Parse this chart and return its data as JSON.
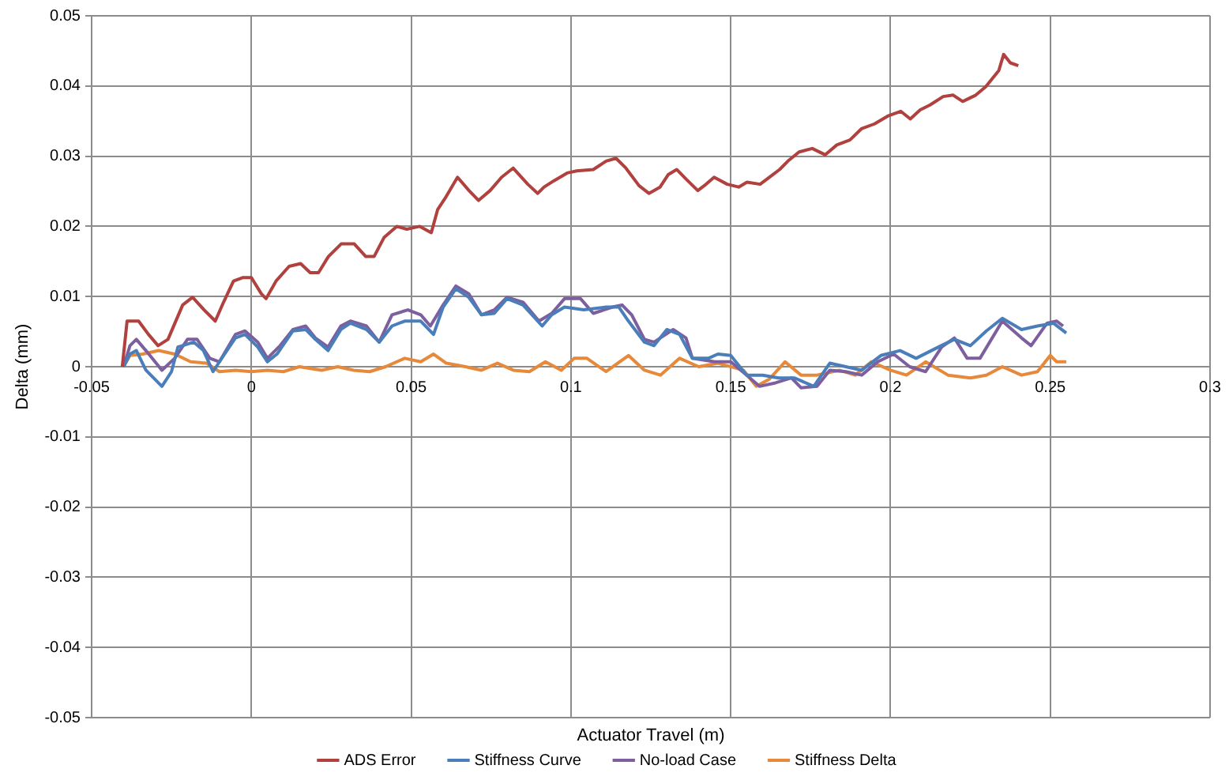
{
  "chart_data": {
    "type": "line",
    "xlabel": "Actuator Travel (m)",
    "ylabel": "Delta (mm)",
    "xlim": [
      -0.05,
      0.3
    ],
    "xticks": [
      -0.05,
      0,
      0.05,
      0.1,
      0.15,
      0.2,
      0.25,
      0.3
    ],
    "ylim": [
      -0.05,
      0.05
    ],
    "yticks": [
      -0.05,
      -0.04,
      -0.03,
      -0.02,
      -0.01,
      0,
      0.01,
      0.02,
      0.03,
      0.04,
      0.05
    ],
    "grid": true,
    "legend": "bottom",
    "marker": "none",
    "line_style": "solid",
    "series": [
      {
        "name": "ADS Error",
        "color": "#b0413e",
        "x": [
          -0.0404,
          -0.0389,
          -0.0353,
          -0.0322,
          -0.0292,
          -0.0261,
          -0.0215,
          -0.0184,
          -0.0148,
          -0.0113,
          -0.0087,
          -0.0056,
          -0.0026,
          0,
          0.0031,
          0.0046,
          0.0077,
          0.0118,
          0.0154,
          0.0184,
          0.021,
          0.0241,
          0.0281,
          0.0322,
          0.0358,
          0.0384,
          0.0415,
          0.0455,
          0.0486,
          0.0527,
          0.0563,
          0.0583,
          0.0609,
          0.0645,
          0.0681,
          0.0711,
          0.0747,
          0.0783,
          0.0819,
          0.0865,
          0.0896,
          0.0916,
          0.0947,
          0.0988,
          0.1018,
          0.107,
          0.111,
          0.1141,
          0.1172,
          0.1213,
          0.1244,
          0.1279,
          0.1305,
          0.1331,
          0.1361,
          0.1397,
          0.1423,
          0.1448,
          0.1489,
          0.1525,
          0.1551,
          0.1592,
          0.1633,
          0.1653,
          0.1679,
          0.1714,
          0.1755,
          0.1796,
          0.1832,
          0.1873,
          0.1909,
          0.195,
          0.1991,
          0.2032,
          0.2062,
          0.2093,
          0.2124,
          0.2165,
          0.2196,
          0.2226,
          0.2267,
          0.2298,
          0.2339,
          0.2354,
          0.2375,
          0.24
        ],
        "values": [
          0,
          0.0065,
          0.0065,
          0.0046,
          0.003,
          0.0039,
          0.0088,
          0.0099,
          0.0081,
          0.0065,
          0.0092,
          0.0122,
          0.0127,
          0.0127,
          0.0104,
          0.0097,
          0.0122,
          0.0143,
          0.0147,
          0.0134,
          0.0134,
          0.0157,
          0.0175,
          0.0175,
          0.0157,
          0.0157,
          0.0184,
          0.02,
          0.0196,
          0.02,
          0.0191,
          0.0224,
          0.0242,
          0.027,
          0.0251,
          0.0237,
          0.0251,
          0.027,
          0.0283,
          0.026,
          0.0247,
          0.0256,
          0.0265,
          0.0276,
          0.0279,
          0.0281,
          0.0293,
          0.0297,
          0.0283,
          0.0258,
          0.0247,
          0.0256,
          0.0274,
          0.0281,
          0.0267,
          0.0251,
          0.026,
          0.027,
          0.026,
          0.0256,
          0.0263,
          0.026,
          0.0274,
          0.0281,
          0.0293,
          0.0306,
          0.0311,
          0.0302,
          0.0316,
          0.0323,
          0.0339,
          0.0346,
          0.0357,
          0.0364,
          0.0353,
          0.0366,
          0.0373,
          0.0385,
          0.0387,
          0.0378,
          0.0387,
          0.0399,
          0.0422,
          0.0445,
          0.0433,
          0.0429
        ]
      },
      {
        "name": "Stiffness Curve",
        "color": "#4a7ebb",
        "x": [
          -0.04,
          -0.038,
          -0.036,
          -0.033,
          -0.028,
          -0.025,
          -0.023,
          -0.018,
          -0.015,
          -0.012,
          -0.01,
          -0.005,
          -0.002,
          0.002,
          0.005,
          0.008,
          0.013,
          0.017,
          0.02,
          0.024,
          0.028,
          0.031,
          0.036,
          0.04,
          0.044,
          0.048,
          0.053,
          0.057,
          0.06,
          0.064,
          0.068,
          0.072,
          0.076,
          0.08,
          0.085,
          0.091,
          0.094,
          0.098,
          0.104,
          0.111,
          0.115,
          0.118,
          0.123,
          0.126,
          0.13,
          0.134,
          0.138,
          0.143,
          0.146,
          0.15,
          0.155,
          0.16,
          0.165,
          0.17,
          0.176,
          0.181,
          0.186,
          0.191,
          0.197,
          0.203,
          0.208,
          0.215,
          0.22,
          0.225,
          0.23,
          0.235,
          0.241,
          0.246,
          0.251,
          0.255
        ],
        "values": [
          0,
          0.0018,
          0.0023,
          -0.0005,
          -0.0028,
          -0.0007,
          0.0028,
          0.0035,
          0.0023,
          -0.0007,
          0.0007,
          0.0041,
          0.0046,
          0.0028,
          0.0007,
          0.0018,
          0.0051,
          0.0053,
          0.0039,
          0.0023,
          0.0053,
          0.0062,
          0.0053,
          0.0035,
          0.0058,
          0.0065,
          0.0065,
          0.0046,
          0.0085,
          0.0111,
          0.0099,
          0.0074,
          0.0076,
          0.0097,
          0.0088,
          0.0058,
          0.0074,
          0.0085,
          0.0081,
          0.0085,
          0.0085,
          0.0065,
          0.0035,
          0.003,
          0.0053,
          0.0046,
          0.0012,
          0.0012,
          0.0018,
          0.0016,
          -0.0012,
          -0.0012,
          -0.0016,
          -0.0016,
          -0.0028,
          0.0005,
          0,
          -0.0005,
          0.0016,
          0.0023,
          0.0012,
          0.0028,
          0.0039,
          0.003,
          0.0051,
          0.0069,
          0.0053,
          0.0058,
          0.0062,
          0.0048
        ]
      },
      {
        "name": "No-load Case",
        "color": "#7d5fa0",
        "x": [
          -0.04,
          -0.038,
          -0.036,
          -0.033,
          -0.028,
          -0.024,
          -0.02,
          -0.017,
          -0.013,
          -0.01,
          -0.005,
          -0.002,
          0.002,
          0.005,
          0.009,
          0.013,
          0.017,
          0.02,
          0.024,
          0.028,
          0.031,
          0.036,
          0.04,
          0.044,
          0.049,
          0.053,
          0.056,
          0.06,
          0.064,
          0.068,
          0.072,
          0.076,
          0.08,
          0.085,
          0.09,
          0.094,
          0.098,
          0.103,
          0.107,
          0.113,
          0.116,
          0.119,
          0.123,
          0.126,
          0.132,
          0.136,
          0.138,
          0.145,
          0.15,
          0.155,
          0.159,
          0.164,
          0.169,
          0.172,
          0.177,
          0.181,
          0.186,
          0.191,
          0.196,
          0.201,
          0.206,
          0.211,
          0.216,
          0.22,
          0.224,
          0.228,
          0.235,
          0.241,
          0.244,
          0.249,
          0.252,
          0.254
        ],
        "values": [
          0,
          0.003,
          0.0039,
          0.0023,
          -0.0005,
          0.0012,
          0.0039,
          0.0039,
          0.0012,
          0.0007,
          0.0046,
          0.0051,
          0.0035,
          0.0012,
          0.003,
          0.0053,
          0.0058,
          0.0041,
          0.0028,
          0.0058,
          0.0065,
          0.0058,
          0.0035,
          0.0074,
          0.0081,
          0.0074,
          0.0058,
          0.0088,
          0.0115,
          0.0104,
          0.0074,
          0.0081,
          0.0099,
          0.0092,
          0.0065,
          0.0076,
          0.0097,
          0.0097,
          0.0076,
          0.0085,
          0.0088,
          0.0074,
          0.0039,
          0.0035,
          0.0053,
          0.0041,
          0.0012,
          0.0007,
          0.0007,
          -0.0012,
          -0.0028,
          -0.0023,
          -0.0016,
          -0.003,
          -0.0028,
          -0.0005,
          -0.0007,
          -0.0012,
          0.0007,
          0.0018,
          0,
          -0.0007,
          0.0028,
          0.0041,
          0.0012,
          0.0012,
          0.0065,
          0.0041,
          0.003,
          0.0062,
          0.0065,
          0.0058
        ]
      },
      {
        "name": "Stiffness Delta",
        "color": "#e6893b",
        "x": [
          -0.04,
          -0.038,
          -0.034,
          -0.029,
          -0.024,
          -0.019,
          -0.014,
          -0.01,
          -0.005,
          0,
          0.005,
          0.01,
          0.015,
          0.022,
          0.027,
          0.032,
          0.037,
          0.042,
          0.048,
          0.053,
          0.057,
          0.061,
          0.067,
          0.072,
          0.077,
          0.082,
          0.087,
          0.092,
          0.097,
          0.101,
          0.105,
          0.111,
          0.118,
          0.123,
          0.128,
          0.134,
          0.14,
          0.146,
          0.154,
          0.158,
          0.162,
          0.167,
          0.172,
          0.177,
          0.184,
          0.189,
          0.194,
          0.2,
          0.205,
          0.211,
          0.218,
          0.225,
          0.23,
          0.235,
          0.241,
          0.246,
          0.25,
          0.252,
          0.255
        ],
        "values": [
          0,
          0.0016,
          0.0018,
          0.0023,
          0.0018,
          0.0007,
          0.0005,
          -0.0007,
          -0.0005,
          -0.0007,
          -0.0005,
          -0.0007,
          0,
          -0.0005,
          0,
          -0.0005,
          -0.0007,
          0,
          0.0012,
          0.0007,
          0.0018,
          0.0005,
          0,
          -0.0005,
          0.0005,
          -0.0005,
          -0.0007,
          0.0007,
          -0.0005,
          0.0012,
          0.0012,
          -0.0007,
          0.0016,
          -0.0005,
          -0.0012,
          0.0012,
          0,
          0.0005,
          -0.0005,
          -0.0028,
          -0.0018,
          0.0007,
          -0.0012,
          -0.0012,
          -0.0005,
          -0.0012,
          0.0007,
          -0.0005,
          -0.0012,
          0.0007,
          -0.0012,
          -0.0016,
          -0.0012,
          0,
          -0.0012,
          -0.0007,
          0.0016,
          0.0007,
          0.0007
        ]
      }
    ]
  }
}
